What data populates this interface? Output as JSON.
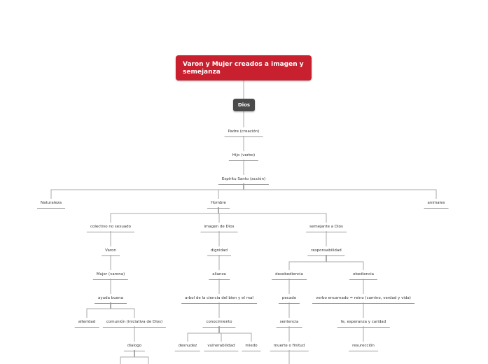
{
  "root": {
    "title": "Varon y Mujer creados a imagen y semejanza",
    "color": "#c8202f"
  },
  "main_topic": {
    "label": "Dios",
    "color": "#4a4a4a"
  },
  "nodes": [
    "Padre (creación)",
    "Hijo (verbo)",
    "Espiritu Santo (acción)",
    "Naturaleza",
    "Hombre",
    "animales",
    "colectivo no sexuado",
    "imagen de Dios",
    "semejante a Dios",
    "Varon",
    "dignidad",
    "responsabilidad",
    "Mujer (varona)",
    "alianza",
    "desobediencia",
    "obediencia",
    "ayuda buena",
    "arbol de la ciencia del bien y el mal",
    "pecado",
    "verbo encarnado = reino (camino, verdad y vida)",
    "alteridad",
    "comunión (iniciativa de Dios)",
    "conocimiento",
    "sentencia",
    "fe, esperanza y caridad",
    "dialogo",
    "desnudez",
    "vulnerabilidad",
    "miedo",
    "muerte o finitud",
    "resurección"
  ]
}
